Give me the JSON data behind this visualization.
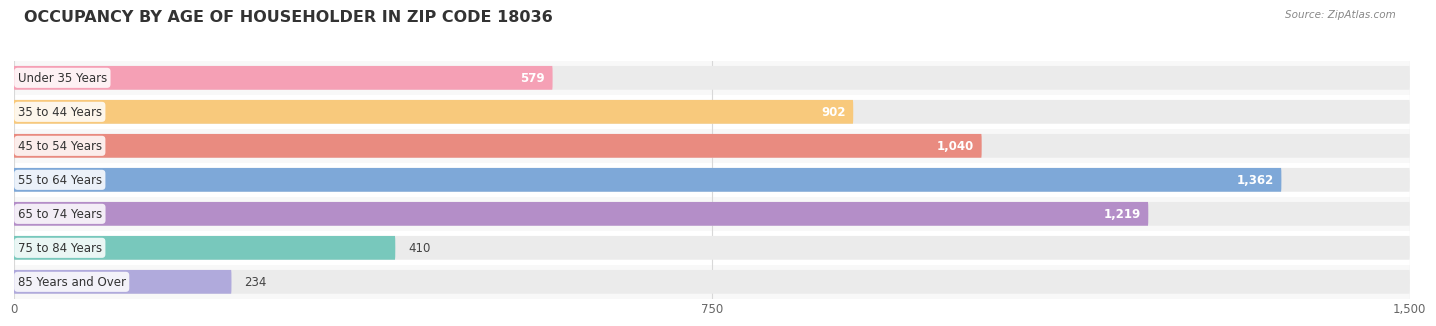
{
  "title": "OCCUPANCY BY AGE OF HOUSEHOLDER IN ZIP CODE 18036",
  "source": "Source: ZipAtlas.com",
  "categories": [
    "Under 35 Years",
    "35 to 44 Years",
    "45 to 54 Years",
    "55 to 64 Years",
    "65 to 74 Years",
    "75 to 84 Years",
    "85 Years and Over"
  ],
  "values": [
    579,
    902,
    1040,
    1362,
    1219,
    410,
    234
  ],
  "bar_colors": [
    "#F5A0B5",
    "#F8C97C",
    "#E98B80",
    "#7EA8D8",
    "#B48EC8",
    "#78C8BC",
    "#B0AADC"
  ],
  "bar_bg_color": "#EBEBEB",
  "xlim": [
    0,
    1500
  ],
  "xticks": [
    0,
    750,
    1500
  ],
  "title_fontsize": 11.5,
  "label_fontsize": 8.5,
  "value_fontsize": 8.5,
  "bar_height": 0.7,
  "background_color": "#FFFFFF",
  "grid_color": "#D8D8D8",
  "row_bg_colors": [
    "#F8F8F8",
    "#FFFFFF"
  ]
}
